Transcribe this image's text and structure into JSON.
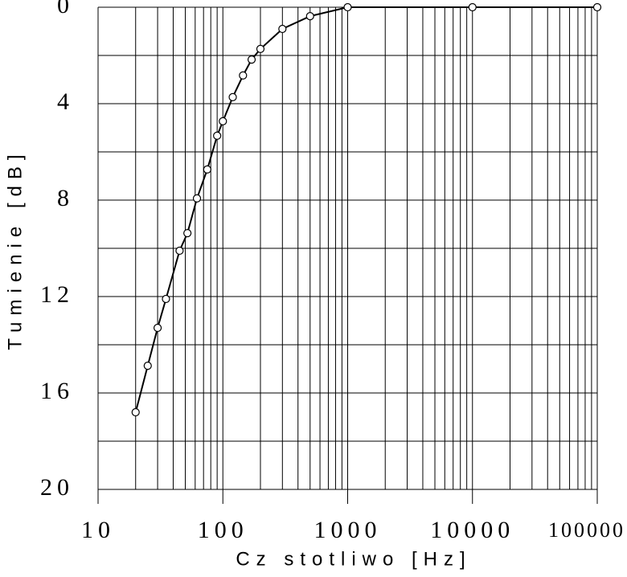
{
  "chart_data": {
    "type": "line",
    "xlabel": "Cz stotliwo [Hz]",
    "ylabel": "Tumienie [dB]",
    "x": [
      20,
      25,
      30,
      35,
      45,
      52,
      62,
      75,
      90,
      100,
      120,
      145,
      170,
      200,
      300,
      500,
      1000,
      10000,
      100000
    ],
    "series": [
      {
        "color": "#000000",
        "values": [
          16.8,
          14.87,
          13.3,
          12.1,
          10.1,
          9.37,
          7.93,
          6.73,
          5.33,
          4.73,
          3.73,
          2.83,
          2.17,
          1.73,
          0.9,
          0.37,
          0,
          0,
          0
        ]
      }
    ],
    "xlim": [
      10,
      100000
    ],
    "xticks": [
      10,
      100,
      1000,
      10000,
      100000
    ],
    "xscale": "log",
    "ylim": [
      20,
      0
    ],
    "yticks": [
      0,
      4,
      8,
      12,
      16,
      20
    ],
    "grid": true
  }
}
